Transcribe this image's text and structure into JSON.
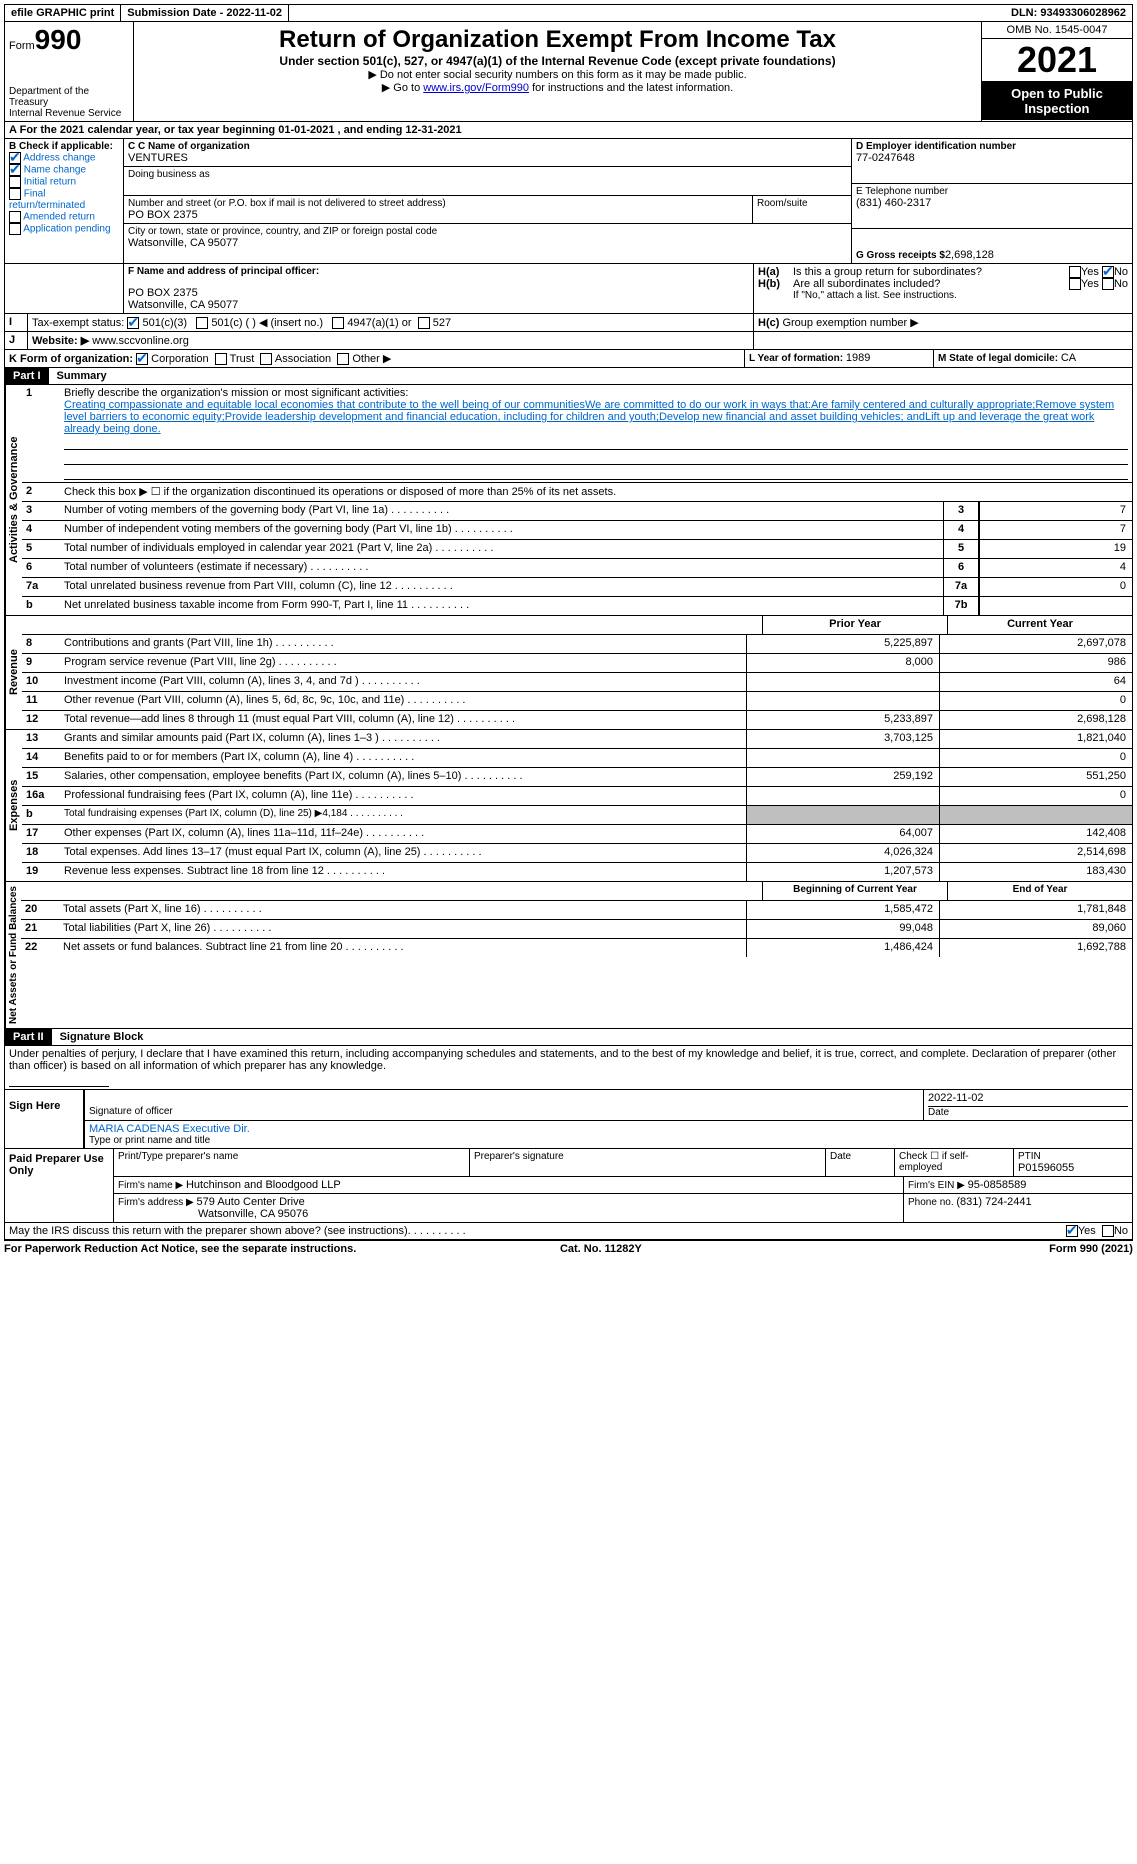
{
  "topbar": {
    "efile": "efile GRAPHIC print",
    "sub_date_label": "Submission Date - ",
    "sub_date": "2022-11-02",
    "dln_label": "DLN: ",
    "dln": "93493306028962"
  },
  "header": {
    "form_label": "Form",
    "form_num": "990",
    "dept": "Department of the Treasury",
    "irs": "Internal Revenue Service",
    "title": "Return of Organization Exempt From Income Tax",
    "subtitle": "Under section 501(c), 527, or 4947(a)(1) of the Internal Revenue Code (except private foundations)",
    "note1": "▶ Do not enter social security numbers on this form as it may be made public.",
    "note2_pre": "▶ Go to ",
    "note2_link": "www.irs.gov/Form990",
    "note2_post": " for instructions and the latest information.",
    "omb": "OMB No. 1545-0047",
    "year": "2021",
    "open_pub": "Open to Public Inspection"
  },
  "lineA": {
    "text_pre": "For the 2021 calendar year, or tax year beginning ",
    "begin": "01-01-2021",
    "mid": " , and ending ",
    "end": "12-31-2021"
  },
  "boxB": {
    "label": "B Check if applicable:",
    "items": [
      "Address change",
      "Name change",
      "Initial return",
      "Final return/terminated",
      "Amended return",
      "Application pending"
    ],
    "checked": [
      true,
      true,
      false,
      false,
      false,
      false
    ]
  },
  "boxC": {
    "name_label": "C Name of organization",
    "name": "VENTURES",
    "dba_label": "Doing business as",
    "addr_label": "Number and street (or P.O. box if mail is not delivered to street address)",
    "room_label": "Room/suite",
    "addr": "PO BOX 2375",
    "city_label": "City or town, state or province, country, and ZIP or foreign postal code",
    "city": "Watsonville, CA  95077"
  },
  "boxD": {
    "label": "D Employer identification number",
    "value": "77-0247648"
  },
  "boxE": {
    "label": "E Telephone number",
    "value": "(831) 460-2317"
  },
  "boxG": {
    "label": "G Gross receipts $ ",
    "value": "2,698,128"
  },
  "boxF": {
    "label": "F Name and address of principal officer:",
    "addr1": "PO BOX 2375",
    "addr2": "Watsonville, CA  95077"
  },
  "boxH": {
    "a_label": "H(a)",
    "a_text": "Is this a group return for subordinates?",
    "b_label": "H(b)",
    "b_text": "Are all subordinates included?",
    "note": "If \"No,\" attach a list. See instructions.",
    "c_label": "H(c)",
    "c_text": "Group exemption number ▶",
    "yes": "Yes",
    "no": "No"
  },
  "boxI": {
    "label": "I",
    "text": "Tax-exempt status:",
    "opt1": "501(c)(3)",
    "opt2": "501(c) (  ) ◀ (insert no.)",
    "opt3": "4947(a)(1) or",
    "opt4": "527"
  },
  "boxJ": {
    "label": "J",
    "text": "Website: ▶",
    "url": "www.sccvonline.org"
  },
  "boxK": {
    "label": "K Form of organization:",
    "opts": [
      "Corporation",
      "Trust",
      "Association",
      "Other ▶"
    ]
  },
  "boxL": {
    "label": "L Year of formation: ",
    "value": "1989"
  },
  "boxM": {
    "label": "M State of legal domicile: ",
    "value": "CA"
  },
  "partI": {
    "header": "Part I",
    "title": "Summary"
  },
  "summary": {
    "l1_num": "1",
    "l1": "Briefly describe the organization's mission or most significant activities:",
    "l1_text": "Creating compassionate and equitable local economies that contribute to the well being of our communitiesWe are committed to do our work in ways that:Are family centered and culturally appropriate;Remove system level barriers to economic equity;Provide leadership development and financial education, including for children and youth;Develop new financial and asset building vehicles; andLift up and leverage the great work already being done.",
    "l2_num": "2",
    "l2": "Check this box ▶ ☐  if the organization discontinued its operations or disposed of more than 25% of its net assets.",
    "rows": [
      {
        "n": "3",
        "d": "Number of voting members of the governing body (Part VI, line 1a)",
        "box": "3",
        "v": "7"
      },
      {
        "n": "4",
        "d": "Number of independent voting members of the governing body (Part VI, line 1b)",
        "box": "4",
        "v": "7"
      },
      {
        "n": "5",
        "d": "Total number of individuals employed in calendar year 2021 (Part V, line 2a)",
        "box": "5",
        "v": "19"
      },
      {
        "n": "6",
        "d": "Total number of volunteers (estimate if necessary)",
        "box": "6",
        "v": "4"
      },
      {
        "n": "7a",
        "d": "Total unrelated business revenue from Part VIII, column (C), line 12",
        "box": "7a",
        "v": "0"
      },
      {
        "n": "b",
        "d": "Net unrelated business taxable income from Form 990-T, Part I, line 11",
        "box": "7b",
        "v": ""
      }
    ]
  },
  "revenue": {
    "label": "Revenue",
    "hdr_prior": "Prior Year",
    "hdr_curr": "Current Year",
    "rows": [
      {
        "n": "8",
        "d": "Contributions and grants (Part VIII, line 1h)",
        "p": "5,225,897",
        "c": "2,697,078"
      },
      {
        "n": "9",
        "d": "Program service revenue (Part VIII, line 2g)",
        "p": "8,000",
        "c": "986"
      },
      {
        "n": "10",
        "d": "Investment income (Part VIII, column (A), lines 3, 4, and 7d )",
        "p": "",
        "c": "64"
      },
      {
        "n": "11",
        "d": "Other revenue (Part VIII, column (A), lines 5, 6d, 8c, 9c, 10c, and 11e)",
        "p": "",
        "c": "0"
      },
      {
        "n": "12",
        "d": "Total revenue—add lines 8 through 11 (must equal Part VIII, column (A), line 12)",
        "p": "5,233,897",
        "c": "2,698,128"
      }
    ]
  },
  "expenses": {
    "label": "Expenses",
    "rows": [
      {
        "n": "13",
        "d": "Grants and similar amounts paid (Part IX, column (A), lines 1–3 )",
        "p": "3,703,125",
        "c": "1,821,040"
      },
      {
        "n": "14",
        "d": "Benefits paid to or for members (Part IX, column (A), line 4)",
        "p": "",
        "c": "0"
      },
      {
        "n": "15",
        "d": "Salaries, other compensation, employee benefits (Part IX, column (A), lines 5–10)",
        "p": "259,192",
        "c": "551,250"
      },
      {
        "n": "16a",
        "d": "Professional fundraising fees (Part IX, column (A), line 11e)",
        "p": "",
        "c": "0"
      },
      {
        "n": "b",
        "d": "Total fundraising expenses (Part IX, column (D), line 25) ▶4,184",
        "p": "shaded",
        "c": "shaded"
      },
      {
        "n": "17",
        "d": "Other expenses (Part IX, column (A), lines 11a–11d, 11f–24e)",
        "p": "64,007",
        "c": "142,408"
      },
      {
        "n": "18",
        "d": "Total expenses. Add lines 13–17 (must equal Part IX, column (A), line 25)",
        "p": "4,026,324",
        "c": "2,514,698"
      },
      {
        "n": "19",
        "d": "Revenue less expenses. Subtract line 18 from line 12",
        "p": "1,207,573",
        "c": "183,430"
      }
    ]
  },
  "netassets": {
    "label": "Net Assets or Fund Balances",
    "hdr_begin": "Beginning of Current Year",
    "hdr_end": "End of Year",
    "rows": [
      {
        "n": "20",
        "d": "Total assets (Part X, line 16)",
        "p": "1,585,472",
        "c": "1,781,848"
      },
      {
        "n": "21",
        "d": "Total liabilities (Part X, line 26)",
        "p": "99,048",
        "c": "89,060"
      },
      {
        "n": "22",
        "d": "Net assets or fund balances. Subtract line 21 from line 20",
        "p": "1,486,424",
        "c": "1,692,788"
      }
    ]
  },
  "partII": {
    "header": "Part II",
    "title": "Signature Block"
  },
  "sig": {
    "declare": "Under penalties of perjury, I declare that I have examined this return, including accompanying schedules and statements, and to the best of my knowledge and belief, it is true, correct, and complete. Declaration of preparer (other than officer) is based on all information of which preparer has any knowledge.",
    "sign_here": "Sign Here",
    "sig_officer": "Signature of officer",
    "date_label": "Date",
    "date": "2022-11-02",
    "name_title": "MARIA CADENAS  Executive Dir.",
    "name_label": "Type or print name and title",
    "paid_prep": "Paid Preparer Use Only",
    "prep_name_label": "Print/Type preparer's name",
    "prep_sig_label": "Preparer's signature",
    "check_self": "Check ☐ if self-employed",
    "ptin_label": "PTIN",
    "ptin": "P01596055",
    "firm_name_label": "Firm's name    ▶ ",
    "firm_name": "Hutchinson and Bloodgood LLP",
    "firm_ein_label": "Firm's EIN ▶ ",
    "firm_ein": "95-0858589",
    "firm_addr_label": "Firm's address ▶ ",
    "firm_addr1": "579 Auto Center Drive",
    "firm_addr2": "Watsonville, CA  95076",
    "phone_label": "Phone no. ",
    "phone": "(831) 724-2441",
    "may_irs": "May the IRS discuss this return with the preparer shown above? (see instructions)",
    "yes": "Yes",
    "no": "No"
  },
  "footer": {
    "left": "For Paperwork Reduction Act Notice, see the separate instructions.",
    "mid": "Cat. No. 11282Y",
    "right": "Form 990 (2021)"
  },
  "vert": {
    "activities": "Activities & Governance"
  }
}
